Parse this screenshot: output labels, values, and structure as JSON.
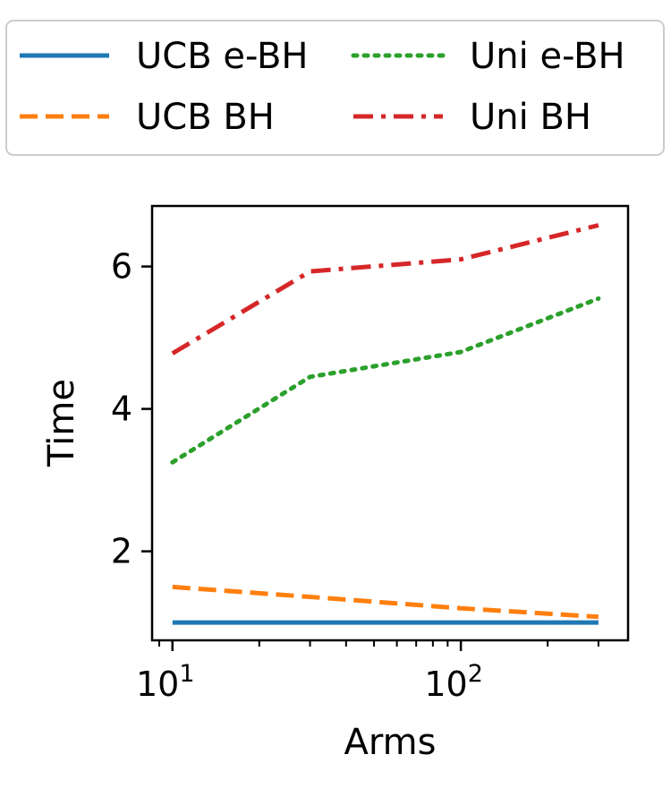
{
  "chart_data": {
    "type": "line",
    "xscale": "log",
    "xlabel": "Arms",
    "ylabel": "Time",
    "xlim": [
      8.5,
      380
    ],
    "ylim": [
      0.75,
      6.85
    ],
    "x": [
      10,
      30,
      100,
      300
    ],
    "xticks": [
      {
        "value": 10,
        "base": "10",
        "exp": "1"
      },
      {
        "value": 100,
        "base": "10",
        "exp": "2"
      }
    ],
    "yticks": [
      {
        "value": 2,
        "label": "2"
      },
      {
        "value": 4,
        "label": "4"
      },
      {
        "value": 6,
        "label": "6"
      }
    ],
    "series": [
      {
        "name": "UCB e-BH",
        "values": [
          1.0,
          1.0,
          1.0,
          1.0
        ],
        "color": "#1f77b4",
        "dash": "solid"
      },
      {
        "name": "UCB BH",
        "values": [
          1.5,
          1.36,
          1.2,
          1.08
        ],
        "color": "#ff7f0e",
        "dash": "dashed"
      },
      {
        "name": "Uni e-BH",
        "values": [
          3.25,
          4.45,
          4.8,
          5.55
        ],
        "color": "#2ca02c",
        "dash": "dotted"
      },
      {
        "name": "Uni BH",
        "values": [
          4.78,
          5.93,
          6.1,
          6.58
        ],
        "color": "#d62728",
        "dash": "dashdot"
      }
    ],
    "grid": false,
    "legend": {
      "position": "top",
      "columns": 2
    }
  }
}
